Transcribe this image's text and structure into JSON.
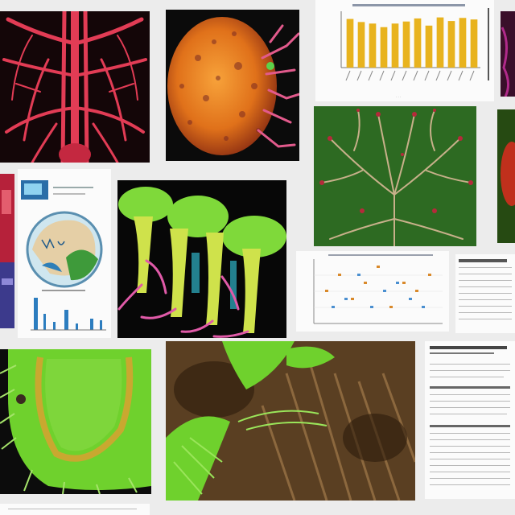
{
  "colors": {
    "bar_gold": "#e8b31e",
    "vessel_red": "#e23c55",
    "tissue_orange": "#e0711a",
    "leaf_green": "#6fd12d",
    "background": "#ececec"
  },
  "tiles": [
    {
      "id": "vascular-network",
      "kind": "illustration",
      "icon": "blood-vessel-network"
    },
    {
      "id": "orange-organ",
      "kind": "illustration",
      "icon": "organ-tissue"
    },
    {
      "id": "bar-chart",
      "kind": "chart"
    },
    {
      "id": "magenta-edge",
      "kind": "illustration"
    },
    {
      "id": "red-book-edge",
      "kind": "document"
    },
    {
      "id": "microscope-poster",
      "kind": "document"
    },
    {
      "id": "root-structure",
      "kind": "illustration",
      "icon": "root-system"
    },
    {
      "id": "green-branching-tree",
      "kind": "illustration",
      "icon": "branching-tree"
    },
    {
      "id": "red-edge",
      "kind": "illustration"
    },
    {
      "id": "scatter-plot",
      "kind": "chart"
    },
    {
      "id": "data-table-doc",
      "kind": "document"
    },
    {
      "id": "green-villi",
      "kind": "illustration",
      "icon": "villi-tissue"
    },
    {
      "id": "fern-habitat",
      "kind": "illustration",
      "icon": "fern-cluster"
    },
    {
      "id": "report-page",
      "kind": "document"
    }
  ],
  "chart_data": [
    {
      "type": "bar",
      "title": "",
      "categories": [
        "",
        "",
        "",
        "",
        "",
        "",
        "",
        "",
        "",
        "",
        "",
        ""
      ],
      "values": [
        0.95,
        0.89,
        0.86,
        0.79,
        0.86,
        0.9,
        0.96,
        0.82,
        0.98,
        0.91,
        0.97,
        0.94
      ],
      "ylim": [
        0,
        1.1
      ],
      "grid": false
    },
    {
      "type": "scatter",
      "title": "",
      "series": [
        {
          "x": [
            1,
            2,
            3,
            4,
            5,
            6,
            7,
            8,
            9
          ],
          "y": [
            4,
            6,
            3,
            5,
            7,
            2,
            5,
            4,
            6
          ]
        },
        {
          "x": [
            1.5,
            2.5,
            3.5,
            4.5,
            5.5,
            6.5,
            7.5,
            8.5
          ],
          "y": [
            2,
            3,
            6,
            2,
            4,
            5,
            3,
            2
          ]
        }
      ],
      "grid": true
    }
  ]
}
